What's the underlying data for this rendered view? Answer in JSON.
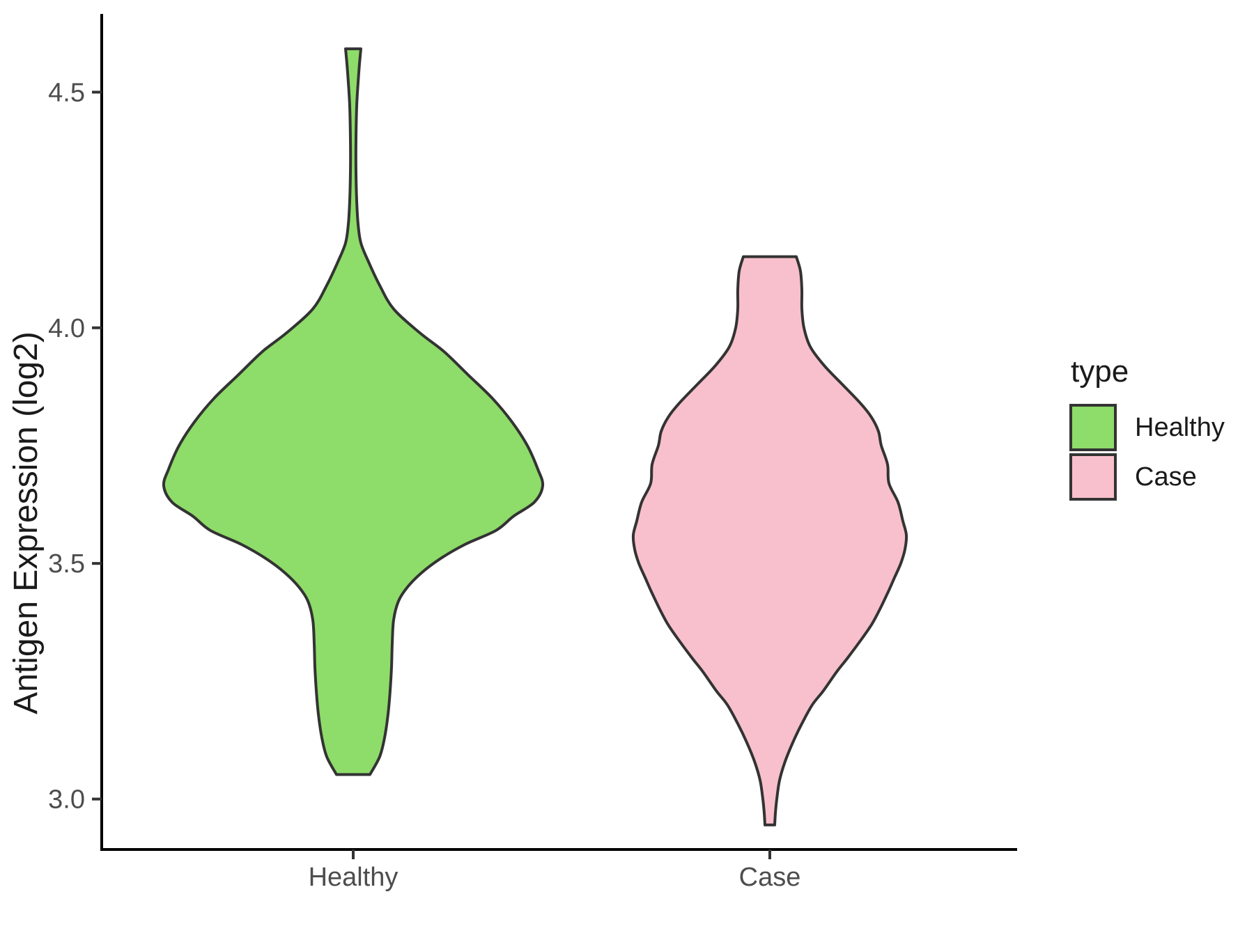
{
  "chart_data": {
    "type": "violin",
    "title": "",
    "xlabel": "",
    "ylabel": "Antigen Expression (log2)",
    "categories": [
      "Healthy",
      "Case"
    ],
    "ylim": [
      2.893,
      4.666
    ],
    "yticks": {
      "values": [
        3.0,
        3.5,
        4.0,
        4.5
      ],
      "labels": [
        "3.0",
        "3.5",
        "4.0",
        "4.5"
      ]
    },
    "grid": false,
    "legend": {
      "title": "type",
      "position": "right",
      "entries": [
        {
          "label": "Healthy",
          "color": "#8EDC69"
        },
        {
          "label": "Case",
          "color": "#F8C0CC"
        }
      ]
    },
    "theme": {
      "axis_color": "#000000",
      "tick_color": "#333333",
      "axis_text_color": "#4d4d4d",
      "text_color": "#1a1a1a",
      "outline_color": "#333333"
    },
    "profile_format": "[y_value, halfwidth_px]",
    "series": [
      {
        "name": "Healthy",
        "color": "#8EDC69",
        "outline": "#333333",
        "profile": [
          [
            4.592,
            11
          ],
          [
            4.56,
            9
          ],
          [
            4.52,
            7
          ],
          [
            4.47,
            5
          ],
          [
            4.4,
            4
          ],
          [
            4.33,
            4
          ],
          [
            4.27,
            5
          ],
          [
            4.22,
            7
          ],
          [
            4.18,
            11
          ],
          [
            4.14,
            22
          ],
          [
            4.09,
            38
          ],
          [
            4.04,
            58
          ],
          [
            3.99,
            95
          ],
          [
            3.95,
            130
          ],
          [
            3.9,
            165
          ],
          [
            3.85,
            200
          ],
          [
            3.8,
            228
          ],
          [
            3.75,
            250
          ],
          [
            3.7,
            265
          ],
          [
            3.665,
            272
          ],
          [
            3.63,
            260
          ],
          [
            3.6,
            230
          ],
          [
            3.57,
            205
          ],
          [
            3.54,
            160
          ],
          [
            3.51,
            125
          ],
          [
            3.48,
            98
          ],
          [
            3.45,
            78
          ],
          [
            3.42,
            65
          ],
          [
            3.38,
            58
          ],
          [
            3.33,
            56
          ],
          [
            3.28,
            55
          ],
          [
            3.23,
            53
          ],
          [
            3.18,
            50
          ],
          [
            3.13,
            45
          ],
          [
            3.09,
            38
          ],
          [
            3.052,
            24
          ]
        ]
      },
      {
        "name": "Case",
        "color": "#F8C0CC",
        "outline": "#333333",
        "profile": [
          [
            4.151,
            38
          ],
          [
            4.12,
            44
          ],
          [
            4.08,
            46
          ],
          [
            4.04,
            46
          ],
          [
            4.0,
            49
          ],
          [
            3.96,
            58
          ],
          [
            3.92,
            78
          ],
          [
            3.88,
            104
          ],
          [
            3.84,
            130
          ],
          [
            3.81,
            146
          ],
          [
            3.78,
            156
          ],
          [
            3.75,
            160
          ],
          [
            3.71,
            169
          ],
          [
            3.67,
            171
          ],
          [
            3.63,
            184
          ],
          [
            3.59,
            191
          ],
          [
            3.56,
            196
          ],
          [
            3.53,
            194
          ],
          [
            3.5,
            188
          ],
          [
            3.47,
            179
          ],
          [
            3.44,
            170
          ],
          [
            3.4,
            157
          ],
          [
            3.37,
            146
          ],
          [
            3.34,
            132
          ],
          [
            3.3,
            112
          ],
          [
            3.27,
            96
          ],
          [
            3.23,
            77
          ],
          [
            3.2,
            61
          ],
          [
            3.16,
            46
          ],
          [
            3.12,
            33
          ],
          [
            3.08,
            22
          ],
          [
            3.04,
            14
          ],
          [
            3.0,
            10
          ],
          [
            2.97,
            8
          ],
          [
            2.945,
            7
          ]
        ]
      }
    ]
  }
}
